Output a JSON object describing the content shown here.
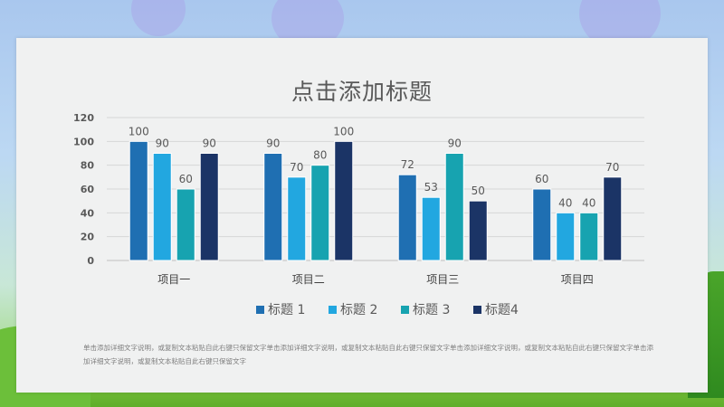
{
  "chart_data": {
    "type": "bar",
    "title": "点击添加标题",
    "categories": [
      "项目一",
      "项目二",
      "项目三",
      "项目四"
    ],
    "series": [
      {
        "name": "标题 1",
        "values": [
          100,
          90,
          72,
          60
        ]
      },
      {
        "name": "标题 2",
        "values": [
          90,
          70,
          53,
          40
        ]
      },
      {
        "name": "标题 3",
        "values": [
          60,
          80,
          90,
          40
        ]
      },
      {
        "name": "标题4",
        "values": [
          90,
          100,
          50,
          70
        ]
      }
    ],
    "ylim": [
      0,
      120
    ],
    "yticks": [
      0,
      20,
      40,
      60,
      80,
      100,
      120
    ],
    "grid": true,
    "legend": "bottom",
    "colors": [
      "#1f6fb2",
      "#22a7e0",
      "#17a3b0",
      "#1b3466"
    ]
  },
  "description": "单击添加详细文字说明，或复制文本粘贴自此右键只保留文字单击添加详细文字说明，或复制文本粘贴自此右键只保留文字单击添加详细文字说明，或复制文本粘贴自此右键只保留文字单击添加详细文字说明，或复制文本粘贴自此右键只保留文字"
}
